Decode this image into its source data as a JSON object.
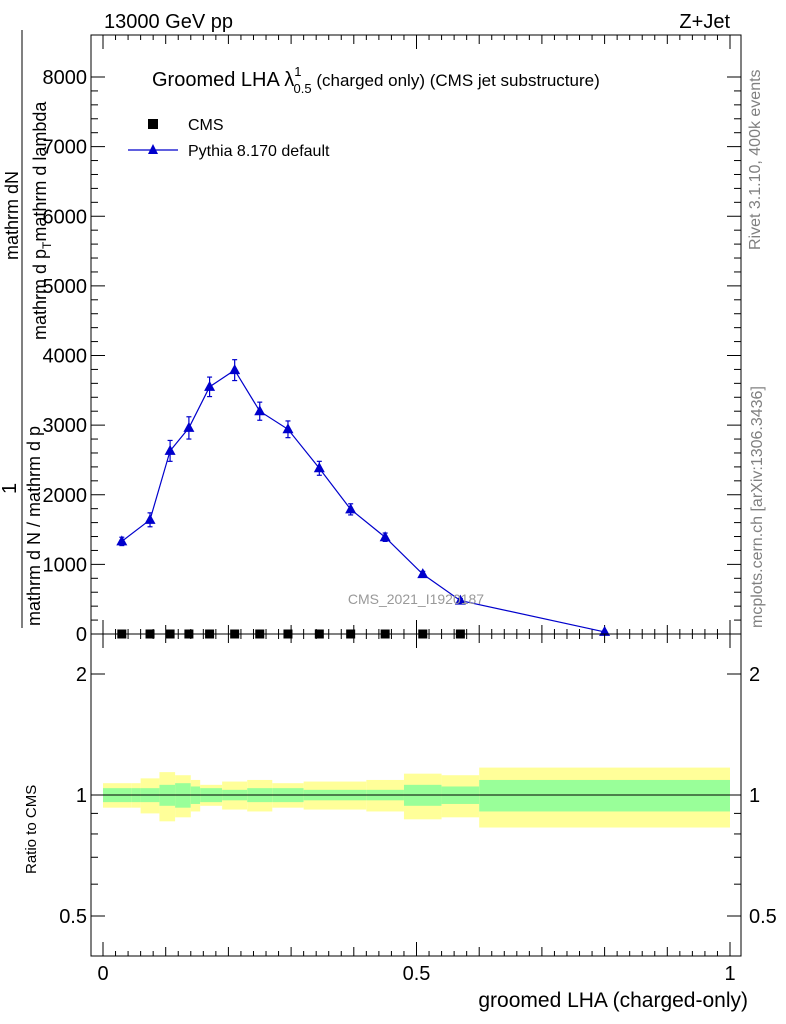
{
  "header": {
    "left": "13000 GeV pp",
    "right": "Z+Jet"
  },
  "title": {
    "main": "Groomed LHA ",
    "lambda": "λ",
    "sup": "1",
    "sub": "0.5",
    "rest": " (charged only) (CMS jet substructure)"
  },
  "side": {
    "rivet": "Rivet 3.1.10,  400k events",
    "mcplots": "mcplots.cern.ch [arXiv:1306.3436]"
  },
  "watermark": "CMS_2021_I1920187",
  "ylabel": {
    "one": "1",
    "den": "mathrm d N / mathrm d p",
    "numer": "mathrm d",
    "numer_sub": "T",
    "numer_rest": "mathrm d lambda",
    "line1": "mathrm dN",
    "line2a": "mathrm d p",
    "line2b": "mathrm d lambda"
  },
  "chart_data": {
    "type": "line",
    "xlabel": "groomed LHA (charged-only)",
    "xlim": [
      0,
      1
    ],
    "x_ticks": [
      "0",
      "0.5",
      "1"
    ],
    "main": {
      "ylim": [
        0,
        8600
      ],
      "y_ticks": [
        "0",
        "1000",
        "2000",
        "3000",
        "4000",
        "5000",
        "6000",
        "7000",
        "8000"
      ]
    },
    "ratio": {
      "ylabel": "Ratio to CMS",
      "ylim": [
        0.4,
        2.3
      ],
      "y_ticks": [
        "0.5",
        "1",
        "2"
      ],
      "ref_line": 1
    },
    "legend": {
      "position": "top-left",
      "entries": [
        {
          "name": "CMS",
          "marker": "square",
          "color": "#000000"
        },
        {
          "name": "Pythia 8.170 default",
          "marker": "triangle",
          "color": "#0000cc"
        }
      ]
    },
    "series": [
      {
        "name": "CMS",
        "x": [
          0.03,
          0.075,
          0.107,
          0.137,
          0.17,
          0.21,
          0.25,
          0.295,
          0.345,
          0.395,
          0.45,
          0.51,
          0.57
        ],
        "y": [
          0,
          0,
          0,
          0,
          0,
          0,
          0,
          0,
          0,
          0,
          0,
          0,
          0
        ]
      },
      {
        "name": "Pythia 8.170 default",
        "x": [
          0.03,
          0.075,
          0.107,
          0.137,
          0.17,
          0.21,
          0.25,
          0.295,
          0.345,
          0.395,
          0.45,
          0.51,
          0.57,
          0.8
        ],
        "y": [
          1330,
          1640,
          2630,
          2960,
          3550,
          3790,
          3200,
          2940,
          2380,
          1790,
          1390,
          860,
          480,
          30
        ],
        "yerr": [
          60,
          100,
          150,
          160,
          140,
          150,
          130,
          120,
          100,
          80,
          60,
          40,
          30,
          10
        ]
      }
    ],
    "ratio_bands": {
      "x_edges": [
        0,
        0.045,
        0.06,
        0.09,
        0.115,
        0.14,
        0.155,
        0.19,
        0.23,
        0.27,
        0.32,
        0.37,
        0.42,
        0.48,
        0.54,
        0.6,
        1.0
      ],
      "inner_lo": [
        0.96,
        0.96,
        0.96,
        0.94,
        0.93,
        0.95,
        0.96,
        0.97,
        0.96,
        0.96,
        0.97,
        0.97,
        0.97,
        0.94,
        0.95,
        0.91
      ],
      "inner_hi": [
        1.04,
        1.04,
        1.04,
        1.06,
        1.07,
        1.05,
        1.04,
        1.03,
        1.04,
        1.04,
        1.03,
        1.03,
        1.03,
        1.06,
        1.05,
        1.09
      ],
      "outer_lo": [
        0.93,
        0.93,
        0.9,
        0.86,
        0.88,
        0.91,
        0.94,
        0.92,
        0.91,
        0.93,
        0.92,
        0.92,
        0.91,
        0.87,
        0.88,
        0.83
      ],
      "outer_hi": [
        1.07,
        1.07,
        1.1,
        1.14,
        1.12,
        1.09,
        1.06,
        1.08,
        1.09,
        1.07,
        1.08,
        1.08,
        1.09,
        1.13,
        1.12,
        1.17
      ],
      "inner_color": "#99ff99",
      "outer_color": "#ffff99"
    }
  }
}
